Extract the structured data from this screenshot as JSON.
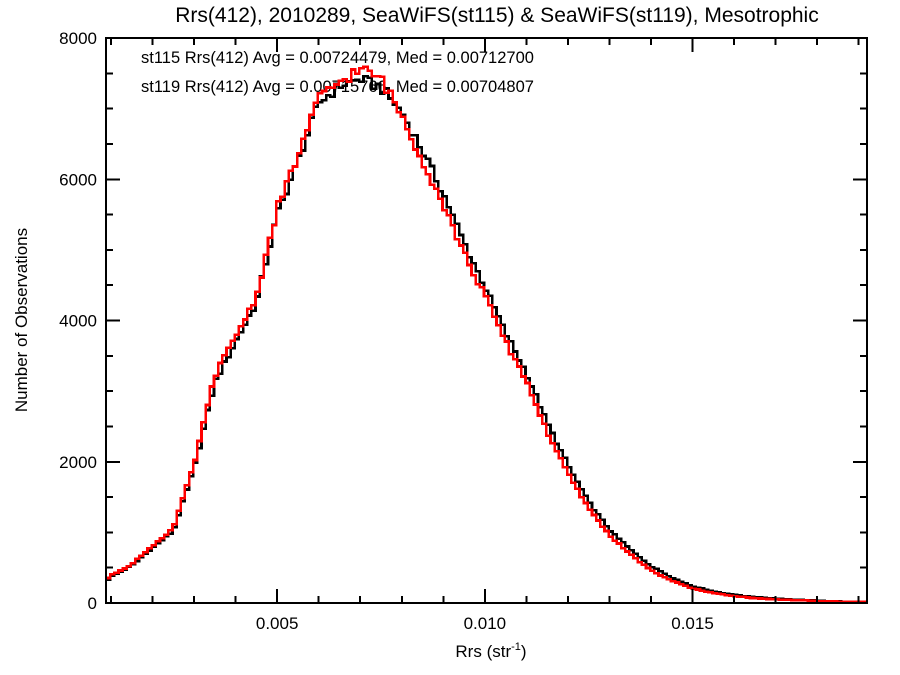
{
  "chart_data": {
    "type": "line",
    "render_style": "step-histogram",
    "title": "Rrs(412), 2010289, SeaWiFS(st115) & SeaWiFS(st119), Mesotrophic",
    "xlabel": "Rrs (str⁻¹)",
    "xlabel_parts": {
      "prefix": "Rrs (str",
      "superscript": "-1",
      "suffix": ")"
    },
    "ylabel": "Number of Observations",
    "xlim": [
      0.00088,
      0.0192
    ],
    "ylim": [
      0,
      8000
    ],
    "grid": "off",
    "background": "#ffffff",
    "axis_color": "#000000",
    "x_axis": {
      "major_ticks": [
        {
          "value": 0.005,
          "label": "0.005"
        },
        {
          "value": 0.01,
          "label": "0.010"
        },
        {
          "value": 0.015,
          "label": "0.015"
        }
      ],
      "minor_tick_step": 0.001
    },
    "y_axis": {
      "major_ticks": [
        {
          "value": 0,
          "label": "0"
        },
        {
          "value": 2000,
          "label": "2000"
        },
        {
          "value": 4000,
          "label": "4000"
        },
        {
          "value": 6000,
          "label": "6000"
        },
        {
          "value": 8000,
          "label": "8000"
        }
      ],
      "minor_tick_step": 500
    },
    "legend": [
      {
        "text": "st115 Rrs(412) Avg = 0.00724479, Med = 0.00712700",
        "color": "#000000"
      },
      {
        "text": "st119 Rrs(412) Avg = 0.00715766, Med = 0.00704807",
        "color": "#ff0000"
      }
    ],
    "bin_width": 0.0001,
    "x": [
      0.0009,
      0.001,
      0.0015,
      0.002,
      0.0025,
      0.003,
      0.0035,
      0.004,
      0.0045,
      0.005,
      0.0055,
      0.006,
      0.0065,
      0.007,
      0.0075,
      0.008,
      0.0085,
      0.009,
      0.0095,
      0.01,
      0.0105,
      0.011,
      0.0115,
      0.012,
      0.0125,
      0.013,
      0.0135,
      0.014,
      0.0145,
      0.015,
      0.0155,
      0.016,
      0.0165,
      0.017,
      0.0175,
      0.018,
      0.0185,
      0.019
    ],
    "series": [
      {
        "name": "st115",
        "color": "#000000",
        "values": [
          320,
          370,
          530,
          780,
          1020,
          1900,
          3120,
          3700,
          4250,
          5500,
          6250,
          7080,
          7320,
          7420,
          7300,
          6950,
          6400,
          5800,
          5100,
          4480,
          3820,
          3260,
          2550,
          1950,
          1430,
          1035,
          760,
          520,
          360,
          235,
          165,
          115,
          82,
          60,
          45,
          32,
          22,
          16
        ]
      },
      {
        "name": "st119",
        "color": "#ff0000",
        "values": [
          340,
          390,
          550,
          810,
          1060,
          1960,
          3220,
          3780,
          4330,
          5580,
          6330,
          7140,
          7380,
          7560,
          7430,
          6900,
          6270,
          5650,
          4950,
          4350,
          3700,
          3150,
          2420,
          1830,
          1340,
          960,
          690,
          460,
          315,
          205,
          142,
          98,
          70,
          52,
          40,
          29,
          21,
          15
        ]
      }
    ]
  }
}
